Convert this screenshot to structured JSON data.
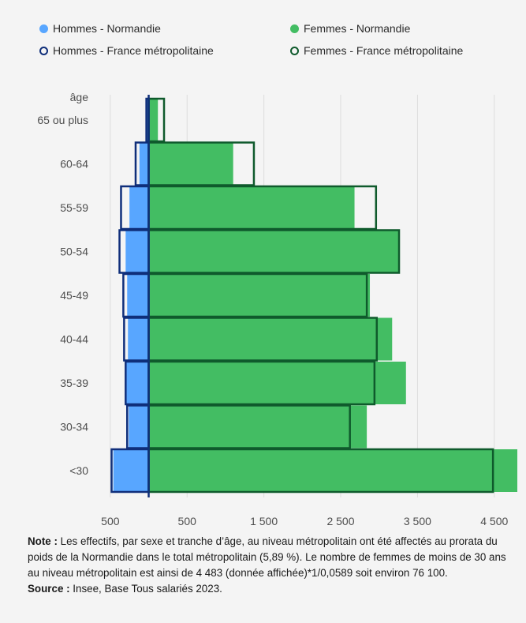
{
  "colors": {
    "background": "#f4f4f4",
    "hommes_normandie": "#58a6ff",
    "femmes_normandie": "#43bd63",
    "hommes_france": "#0f2e7a",
    "femmes_france": "#0f5a2c",
    "axis_text": "#4d4d4d"
  },
  "legend": [
    {
      "label": "Hommes - Normandie",
      "style": "filled",
      "color_key": "hommes_normandie"
    },
    {
      "label": "Femmes - Normandie",
      "style": "filled",
      "color_key": "femmes_normandie"
    },
    {
      "label": "Hommes - France métropolitaine",
      "style": "outline",
      "color_key": "hommes_france"
    },
    {
      "label": "Femmes - France métropolitaine",
      "style": "outline",
      "color_key": "femmes_france"
    }
  ],
  "chart_data": {
    "type": "bar",
    "orientation": "horizontal-population-pyramid",
    "ylabel": "âge",
    "categories": [
      "65 ou plus",
      "60-64",
      "55-59",
      "50-54",
      "45-49",
      "40-44",
      "35-39",
      "30-34",
      "<30"
    ],
    "x_ticks": [
      {
        "label": "500",
        "value": -500
      },
      {
        "label": "500",
        "value": 500
      },
      {
        "label": "1 500",
        "value": 1500
      },
      {
        "label": "2 500",
        "value": 2500
      },
      {
        "label": "3 500",
        "value": 3500
      },
      {
        "label": "4 500",
        "value": 4500
      }
    ],
    "xlim": [
      -560,
      4800
    ],
    "series": [
      {
        "name": "Hommes - Normandie",
        "side": "left",
        "style": "filled",
        "color_key": "hommes_normandie",
        "values": [
          20,
          120,
          250,
          300,
          280,
          270,
          290,
          260,
          460
        ]
      },
      {
        "name": "Femmes - Normandie",
        "side": "right",
        "style": "filled",
        "color_key": "femmes_normandie",
        "values": [
          120,
          1100,
          2680,
          3250,
          2880,
          3170,
          3350,
          2840,
          4800
        ]
      },
      {
        "name": "Hommes - France métropolitaine",
        "side": "left",
        "style": "outline",
        "color_key": "hommes_france",
        "values": [
          30,
          170,
          360,
          380,
          330,
          320,
          300,
          280,
          483
        ]
      },
      {
        "name": "Femmes - France métropolitaine",
        "side": "right",
        "style": "outline",
        "color_key": "femmes_france",
        "values": [
          200,
          1370,
          2960,
          3260,
          2840,
          2970,
          2940,
          2620,
          4483
        ]
      }
    ]
  },
  "note": {
    "note_label": "Note :",
    "note_text": " Les effectifs, par sexe et tranche d’âge, au niveau métropolitain ont été affectés au prorata du poids de la Normandie dans le total métropolitain (5,89 %). Le nombre de femmes de moins de 30 ans au niveau métropolitain est ainsi de 4 483 (donnée affichée)*1/0,0589 soit environ 76 100.",
    "source_label": "Source :",
    "source_text": " Insee, Base Tous salariés 2023."
  }
}
